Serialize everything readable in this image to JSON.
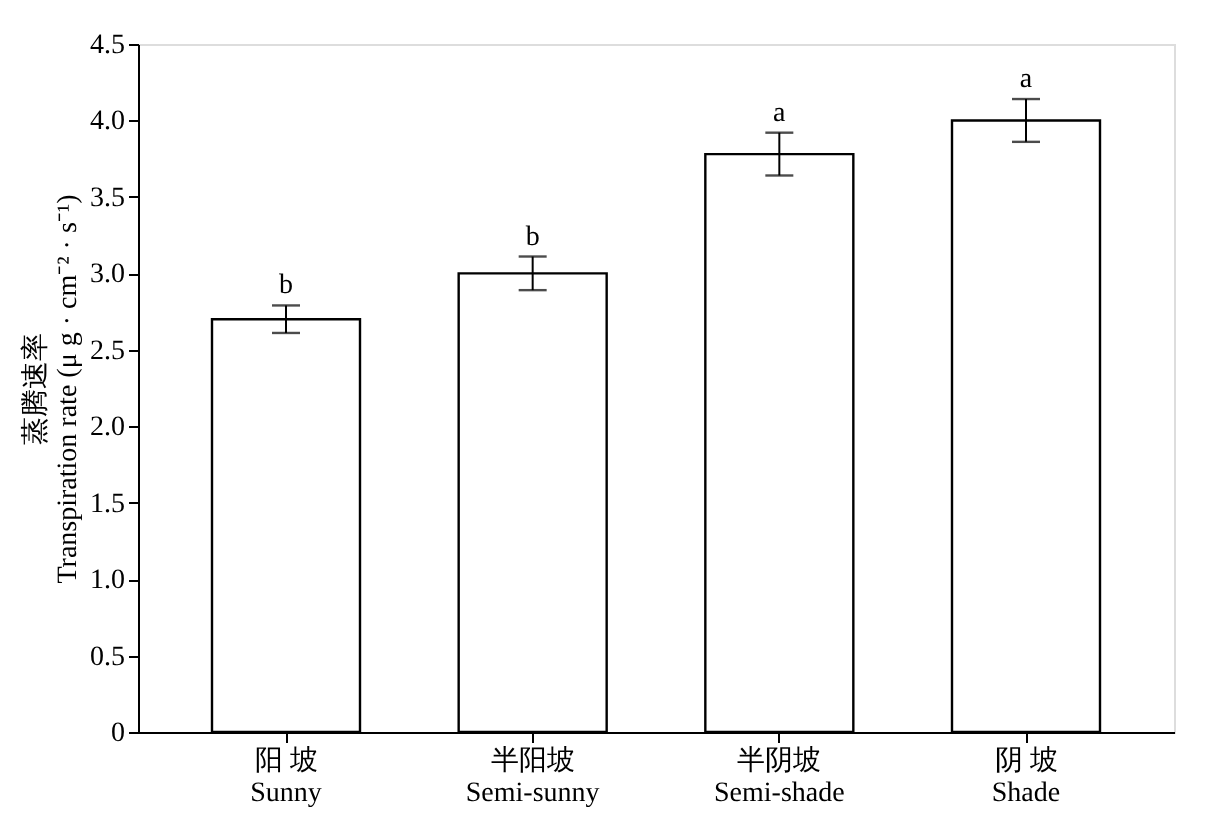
{
  "chart_data": {
    "type": "bar",
    "categories": [
      "阳 坡\nSunny",
      "半阳坡\nSemi-sunny",
      "半阴坡\nSemi-shade",
      "阴 坡\nShade"
    ],
    "values": [
      2.7,
      3.0,
      3.78,
      4.0
    ],
    "errors": [
      0.09,
      0.11,
      0.14,
      0.14
    ],
    "color": "#ffffff",
    "ylabel": "蒸腾速率\nTranspiration rate (μ g · cm⁻² · s⁻¹)",
    "ylim": [
      0,
      4.5
    ],
    "yticks": [
      0,
      {
        "value": 0.5,
        "label": "0.5"
      },
      {
        "value": 1,
        "label": "1.0"
      },
      {
        "value": 1.5,
        "label": "1.5"
      },
      {
        "value": 2,
        "label": "2.0"
      },
      {
        "value": 2.5,
        "label": "2.5"
      },
      {
        "value": 3,
        "label": "3.0"
      },
      {
        "value": 3.5,
        "label": "3.5"
      },
      {
        "value": 4,
        "label": "4.0"
      },
      {
        "value": 4.5,
        "label": "4.5"
      }
    ],
    "annotations": [
      {
        "text": "b",
        "x": "阳 坡\nSunny",
        "y": 2.79
      },
      {
        "text": "b",
        "x": "半阳坡\nSemi-sunny",
        "y": 3.11
      },
      {
        "text": "a",
        "x": "半阴坡\nSemi-shade",
        "y": 3.92
      },
      {
        "text": "a",
        "x": "阴 坡\nShade",
        "y": 4.14
      }
    ],
    "grid": false
  }
}
